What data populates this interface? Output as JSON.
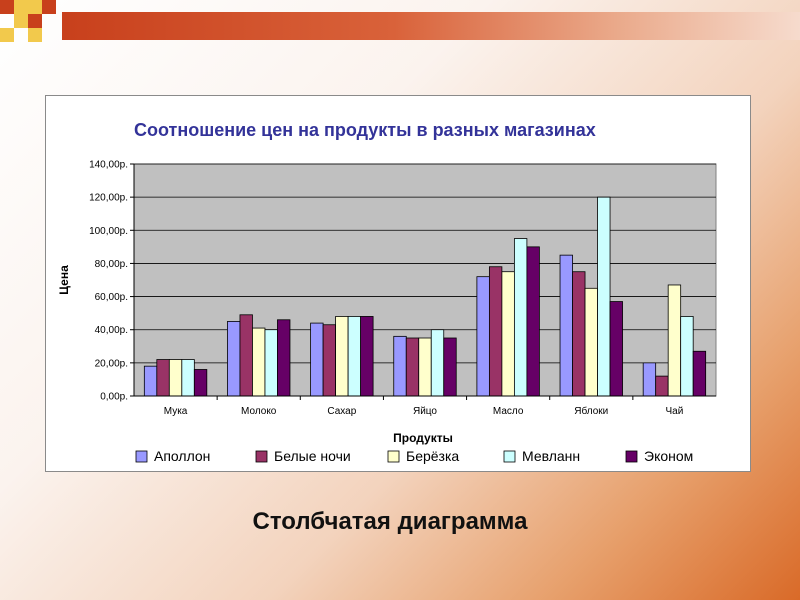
{
  "slide": {
    "caption": "Столбчатая диаграмма"
  },
  "chart_data": {
    "type": "bar",
    "title": "Соотношение цен на продукты в разных магазинах",
    "xlabel": "Продукты",
    "ylabel": "Цена",
    "ylim": [
      0,
      140
    ],
    "yticks": [
      "0,00р.",
      "20,00р.",
      "40,00р.",
      "60,00р.",
      "80,00р.",
      "100,00р.",
      "120,00р.",
      "140,00р."
    ],
    "categories": [
      "Мука",
      "Молоко",
      "Сахар",
      "Яйцо",
      "Масло",
      "Яблоки",
      "Чай"
    ],
    "series": [
      {
        "name": "Аполлон",
        "color": "#9999ff",
        "values": [
          18,
          45,
          44,
          36,
          72,
          85,
          20
        ]
      },
      {
        "name": "Белые ночи",
        "color": "#993366",
        "values": [
          22,
          49,
          43,
          35,
          78,
          75,
          12
        ]
      },
      {
        "name": "Берёзка",
        "color": "#ffffcc",
        "values": [
          22,
          41,
          48,
          35,
          75,
          65,
          67
        ]
      },
      {
        "name": "Мевланн",
        "color": "#ccffff",
        "values": [
          22,
          40,
          48,
          40,
          95,
          120,
          48
        ]
      },
      {
        "name": "Эконом",
        "color": "#660066",
        "values": [
          16,
          46,
          48,
          35,
          90,
          57,
          27
        ]
      }
    ],
    "grid": true,
    "plot_background": "#c0c0c0",
    "legend_position": "bottom"
  }
}
